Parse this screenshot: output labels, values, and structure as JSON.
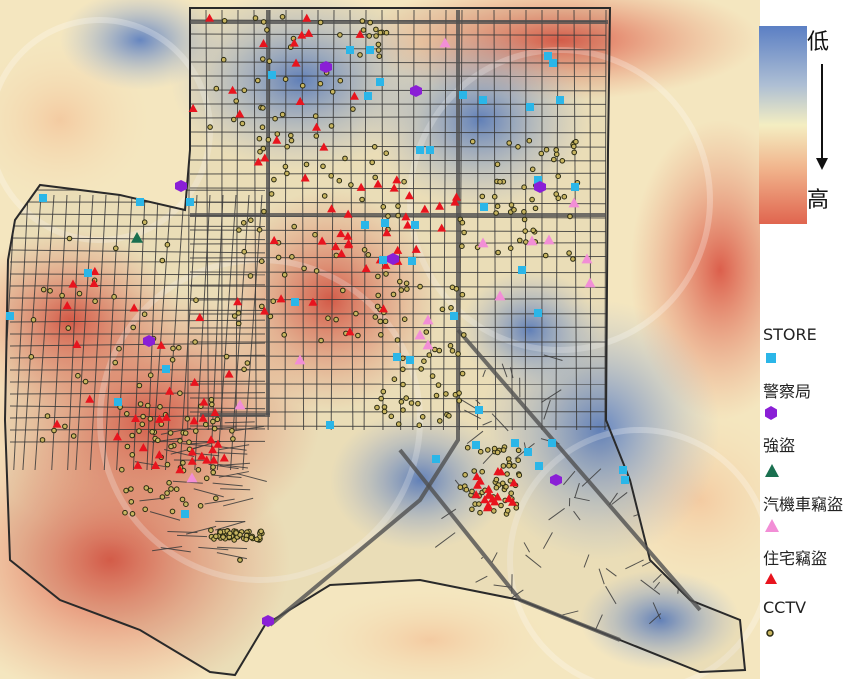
{
  "scale": {
    "low_label": "低",
    "high_label": "高"
  },
  "legend": {
    "items": [
      {
        "key": "store",
        "label": "STORE",
        "symbol": "square",
        "color": "#2bb6e8"
      },
      {
        "key": "police",
        "label": "警察局",
        "symbol": "hexagon",
        "color": "#8a1fd6"
      },
      {
        "key": "robbery",
        "label": "強盜",
        "symbol": "triangle",
        "color": "#1a7050"
      },
      {
        "key": "vehicle_theft",
        "label": "汽機車竊盜",
        "symbol": "triangle",
        "color": "#f28ed6"
      },
      {
        "key": "residential_burglary",
        "label": "住宅竊盜",
        "symbol": "triangle",
        "color": "#e8141e"
      },
      {
        "key": "cctv",
        "label": "CCTV",
        "symbol": "diamond",
        "color": "#2a2a12"
      }
    ]
  },
  "colors": {
    "heat_low": "#5b7fc4",
    "heat_mid": "#f4eec2",
    "heat_high": "#e0654f",
    "road": "#3a3a3a"
  }
}
